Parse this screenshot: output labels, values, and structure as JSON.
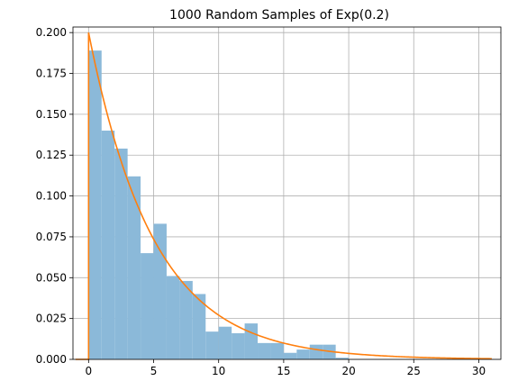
{
  "chart_data": {
    "type": "bar",
    "title": "1000 Random Samples of Exp(0.2)",
    "xlabel": "",
    "ylabel": "",
    "xlim": [
      -1.2,
      31.7
    ],
    "ylim": [
      0,
      0.2034
    ],
    "grid": true,
    "x_ticks": [
      0,
      5,
      10,
      15,
      20,
      25,
      30
    ],
    "x_tick_labels": [
      "0",
      "5",
      "10",
      "15",
      "20",
      "25",
      "30"
    ],
    "y_ticks": [
      0.0,
      0.025,
      0.05,
      0.075,
      0.1,
      0.125,
      0.15,
      0.175,
      0.2
    ],
    "y_tick_labels": [
      "0.000",
      "0.025",
      "0.050",
      "0.075",
      "0.100",
      "0.125",
      "0.150",
      "0.175",
      "0.200"
    ],
    "series": [
      {
        "type": "histogram",
        "color": "#8bb9d9",
        "bin_edges": [
          0,
          1,
          2,
          3,
          4,
          5,
          6,
          7,
          8,
          9,
          10,
          11,
          12,
          13,
          14,
          15,
          16,
          17,
          18,
          19,
          20
        ],
        "values": [
          0.189,
          0.14,
          0.129,
          0.112,
          0.065,
          0.083,
          0.051,
          0.048,
          0.04,
          0.017,
          0.02,
          0.016,
          0.022,
          0.01,
          0.01,
          0.004,
          0.006,
          0.009,
          0.009,
          0.001
        ]
      },
      {
        "type": "line",
        "color": "#ff7f0e",
        "function": "0.2*exp(-0.2*x)",
        "x_range": [
          0,
          31
        ],
        "start_points": [
          [
            -1,
            0
          ],
          [
            0,
            0
          ]
        ]
      }
    ]
  }
}
